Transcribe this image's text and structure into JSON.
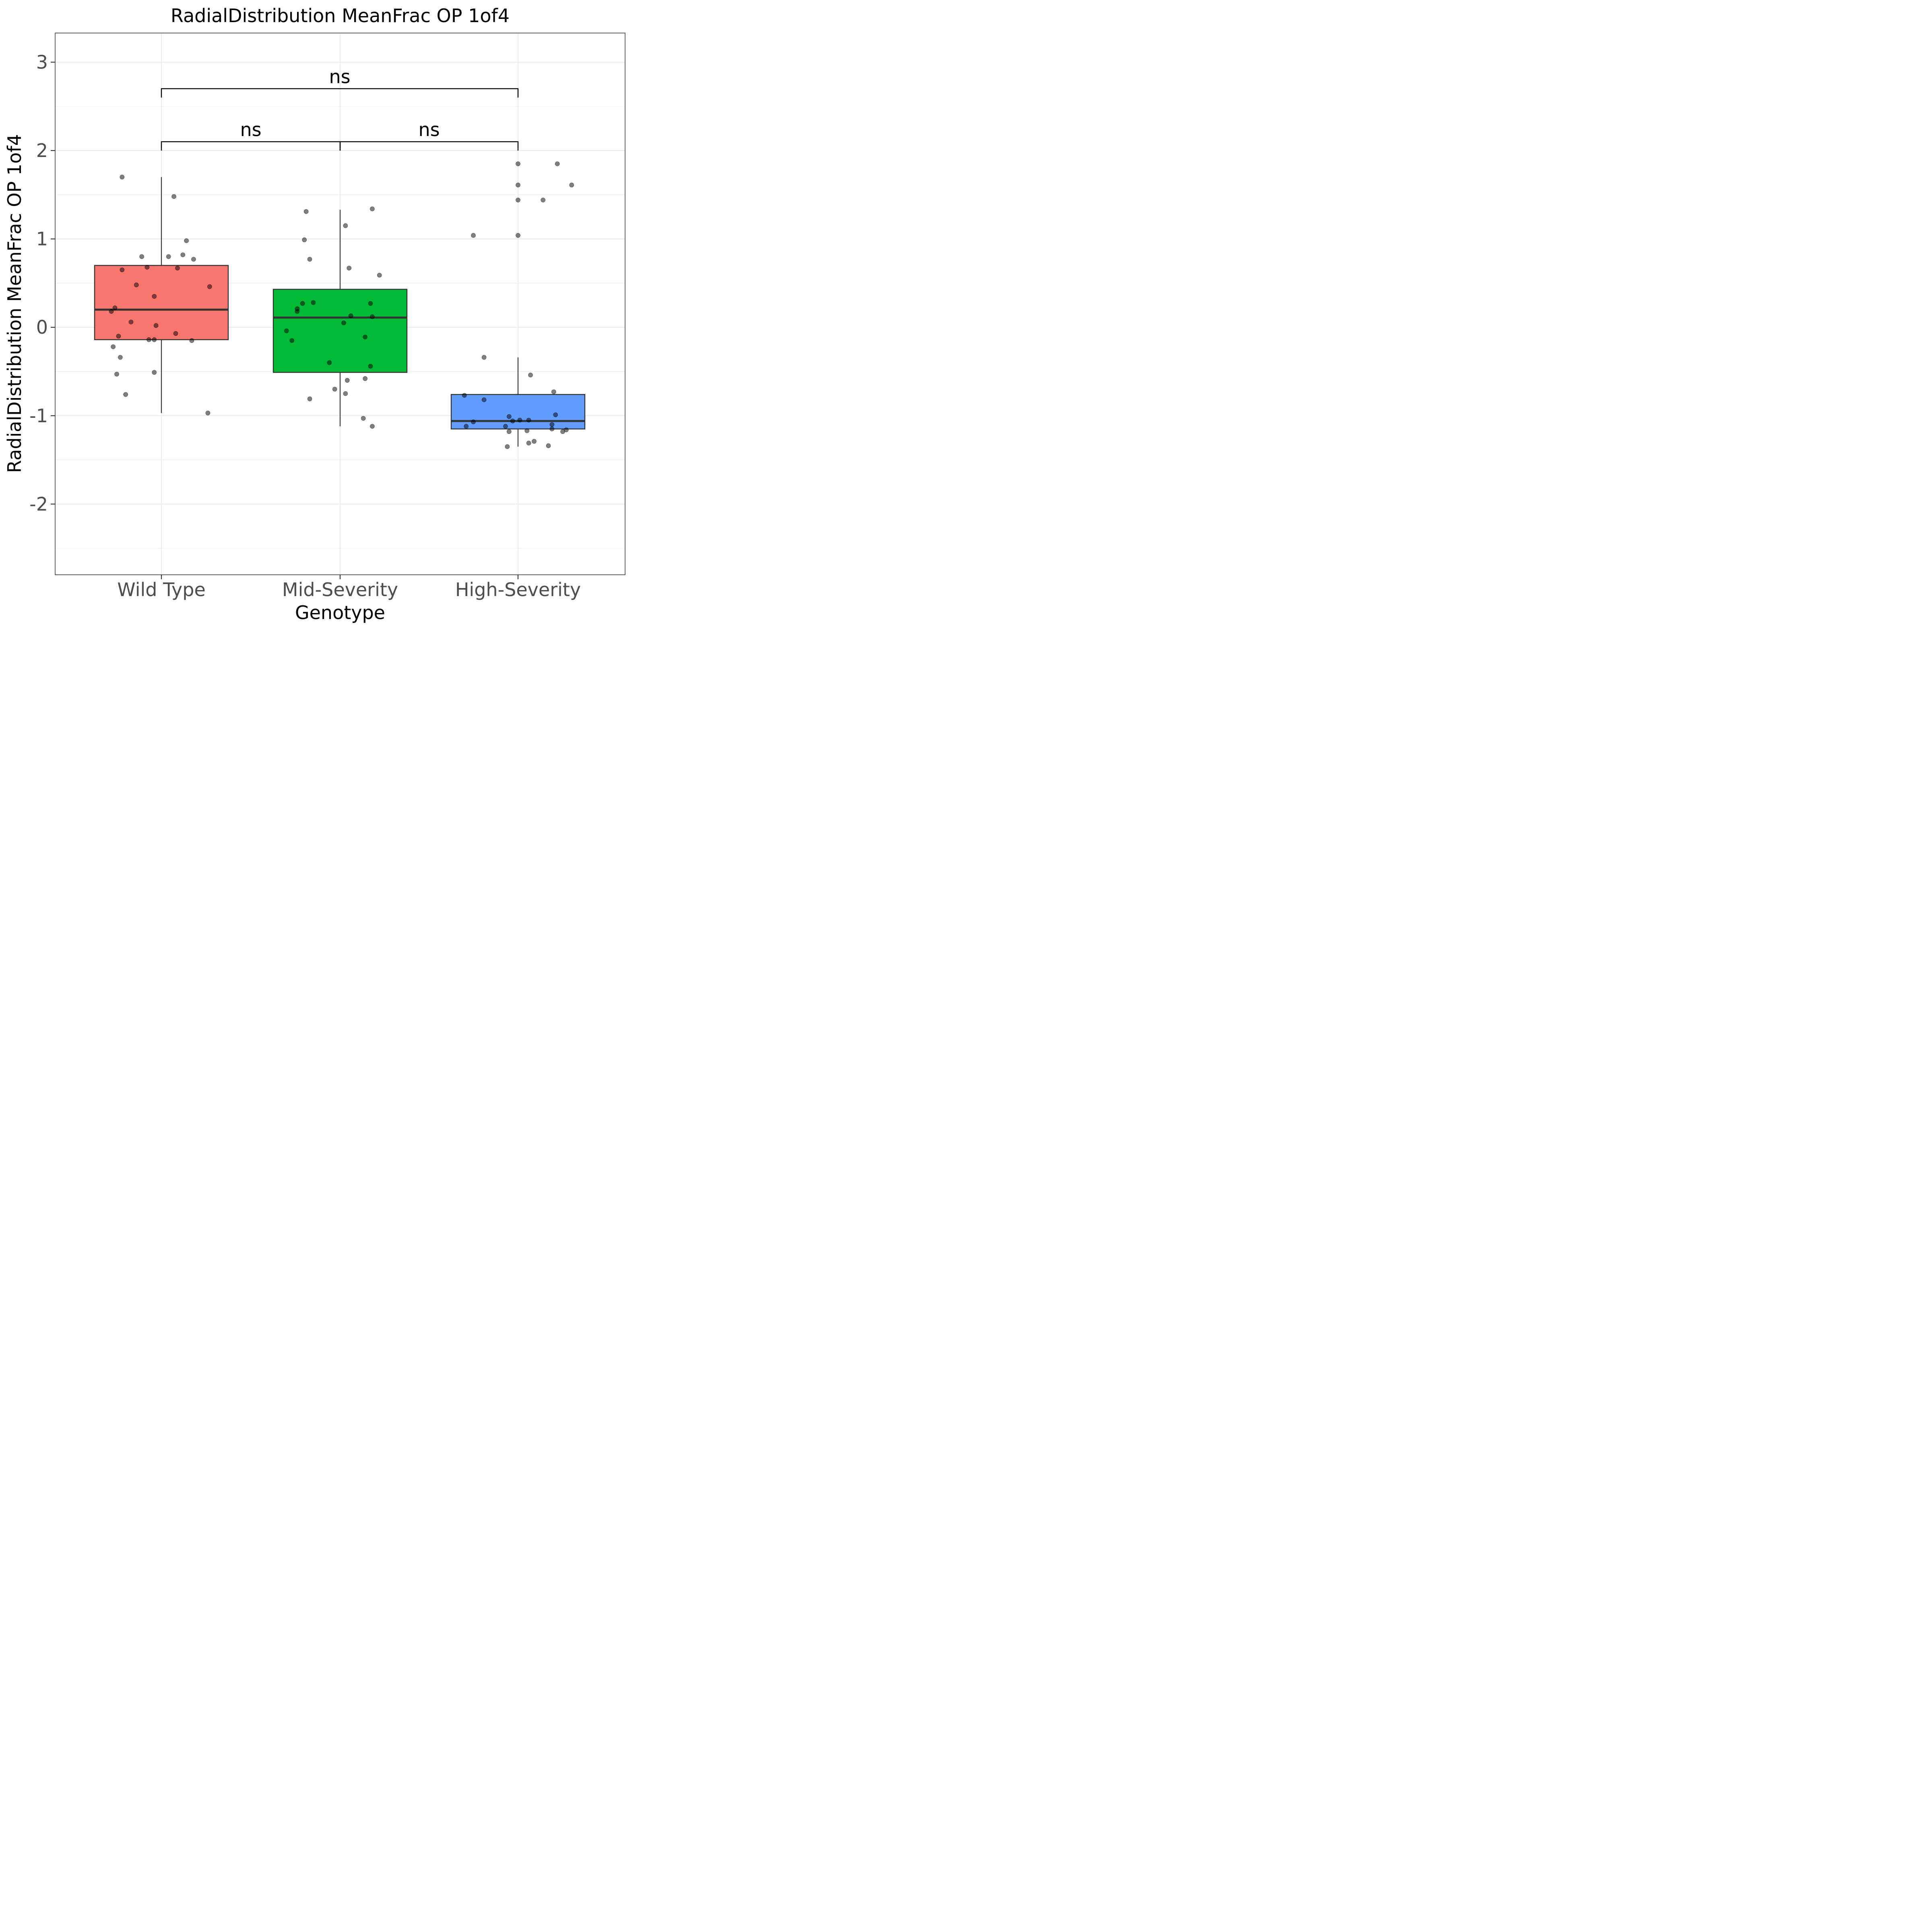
{
  "chart_data": {
    "type": "box",
    "title": "RadialDistribution MeanFrac OP 1of4",
    "xlabel": "Genotype",
    "ylabel": "RadialDistribution MeanFrac OP 1of4",
    "ylim": [
      -2.8,
      3.33
    ],
    "yticks": [
      -2,
      -1,
      0,
      1,
      2,
      3
    ],
    "ytick_labels": [
      "-2",
      "-1",
      "0",
      "1",
      "2",
      "3"
    ],
    "grid": true,
    "categories": [
      "Wild Type",
      "Mid-Severity",
      "High-Severity"
    ],
    "colors": [
      "#F8766D",
      "#00BA38",
      "#619CFF"
    ],
    "boxes": [
      {
        "name": "Wild Type",
        "q1": -0.14,
        "median": 0.2,
        "q3": 0.7,
        "whisker_low": -0.97,
        "whisker_high": 1.7
      },
      {
        "name": "Mid-Severity",
        "q1": -0.51,
        "median": 0.11,
        "q3": 0.43,
        "whisker_low": -1.12,
        "whisker_high": 1.33
      },
      {
        "name": "High-Severity",
        "q1": -1.15,
        "median": -1.06,
        "q3": -0.76,
        "whisker_low": -1.35,
        "whisker_high": -0.34
      }
    ],
    "points": [
      [
        {
          "dx": -0.22,
          "y": 1.7
        },
        {
          "dx": 0.07,
          "y": 1.48
        },
        {
          "dx": 0.14,
          "y": 0.98
        },
        {
          "dx": -0.11,
          "y": 0.8
        },
        {
          "dx": 0.04,
          "y": 0.8
        },
        {
          "dx": 0.12,
          "y": 0.82
        },
        {
          "dx": 0.18,
          "y": 0.77
        },
        {
          "dx": -0.22,
          "y": 0.65
        },
        {
          "dx": -0.08,
          "y": 0.68
        },
        {
          "dx": 0.09,
          "y": 0.67
        },
        {
          "dx": -0.14,
          "y": 0.48
        },
        {
          "dx": 0.27,
          "y": 0.46
        },
        {
          "dx": -0.04,
          "y": 0.35
        },
        {
          "dx": -0.26,
          "y": 0.22
        },
        {
          "dx": -0.28,
          "y": 0.18
        },
        {
          "dx": -0.17,
          "y": 0.06
        },
        {
          "dx": -0.03,
          "y": 0.02
        },
        {
          "dx": 0.08,
          "y": -0.07
        },
        {
          "dx": -0.24,
          "y": -0.1
        },
        {
          "dx": -0.07,
          "y": -0.14
        },
        {
          "dx": -0.04,
          "y": -0.14
        },
        {
          "dx": 0.17,
          "y": -0.15
        },
        {
          "dx": -0.27,
          "y": -0.22
        },
        {
          "dx": -0.23,
          "y": -0.34
        },
        {
          "dx": -0.04,
          "y": -0.51
        },
        {
          "dx": -0.25,
          "y": -0.53
        },
        {
          "dx": -0.2,
          "y": -0.76
        },
        {
          "dx": 0.26,
          "y": -0.97
        }
      ],
      [
        {
          "dx": 0.18,
          "y": 1.34
        },
        {
          "dx": -0.19,
          "y": 1.31
        },
        {
          "dx": 0.03,
          "y": 1.15
        },
        {
          "dx": -0.2,
          "y": 0.99
        },
        {
          "dx": -0.17,
          "y": 0.77
        },
        {
          "dx": 0.05,
          "y": 0.67
        },
        {
          "dx": 0.22,
          "y": 0.59
        },
        {
          "dx": -0.15,
          "y": 0.28
        },
        {
          "dx": -0.21,
          "y": 0.27
        },
        {
          "dx": 0.17,
          "y": 0.27
        },
        {
          "dx": -0.24,
          "y": 0.21
        },
        {
          "dx": -0.24,
          "y": 0.18
        },
        {
          "dx": 0.06,
          "y": 0.13
        },
        {
          "dx": 0.18,
          "y": 0.12
        },
        {
          "dx": 0.02,
          "y": 0.05
        },
        {
          "dx": -0.3,
          "y": -0.04
        },
        {
          "dx": -0.27,
          "y": -0.15
        },
        {
          "dx": 0.14,
          "y": -0.11
        },
        {
          "dx": -0.06,
          "y": -0.4
        },
        {
          "dx": 0.17,
          "y": -0.44
        },
        {
          "dx": 0.14,
          "y": -0.58
        },
        {
          "dx": 0.04,
          "y": -0.6
        },
        {
          "dx": -0.03,
          "y": -0.7
        },
        {
          "dx": 0.03,
          "y": -0.75
        },
        {
          "dx": -0.17,
          "y": -0.81
        },
        {
          "dx": 0.13,
          "y": -1.03
        },
        {
          "dx": 0.18,
          "y": -1.12
        }
      ],
      [
        {
          "dx": 0.0,
          "y": 1.85
        },
        {
          "dx": 0.22,
          "y": 1.85
        },
        {
          "dx": 0.0,
          "y": 1.61
        },
        {
          "dx": 0.3,
          "y": 1.61
        },
        {
          "dx": 0.0,
          "y": 1.44
        },
        {
          "dx": 0.14,
          "y": 1.44
        },
        {
          "dx": -0.25,
          "y": 1.04
        },
        {
          "dx": 0.0,
          "y": 1.04
        },
        {
          "dx": -0.19,
          "y": -0.34
        },
        {
          "dx": 0.07,
          "y": -0.54
        },
        {
          "dx": 0.2,
          "y": -0.73
        },
        {
          "dx": -0.3,
          "y": -0.77
        },
        {
          "dx": -0.19,
          "y": -0.82
        },
        {
          "dx": 0.21,
          "y": -0.99
        },
        {
          "dx": -0.05,
          "y": -1.01
        },
        {
          "dx": -0.03,
          "y": -1.06
        },
        {
          "dx": 0.01,
          "y": -1.05
        },
        {
          "dx": 0.06,
          "y": -1.05
        },
        {
          "dx": -0.25,
          "y": -1.07
        },
        {
          "dx": 0.19,
          "y": -1.1
        },
        {
          "dx": -0.29,
          "y": -1.12
        },
        {
          "dx": -0.07,
          "y": -1.12
        },
        {
          "dx": 0.19,
          "y": -1.15
        },
        {
          "dx": 0.27,
          "y": -1.16
        },
        {
          "dx": -0.05,
          "y": -1.18
        },
        {
          "dx": 0.05,
          "y": -1.17
        },
        {
          "dx": 0.25,
          "y": -1.18
        },
        {
          "dx": 0.09,
          "y": -1.29
        },
        {
          "dx": 0.06,
          "y": -1.31
        },
        {
          "dx": -0.06,
          "y": -1.35
        },
        {
          "dx": 0.17,
          "y": -1.34
        }
      ]
    ],
    "comparisons": [
      {
        "from": 0,
        "to": 1,
        "y": 2.1,
        "label": "ns"
      },
      {
        "from": 1,
        "to": 2,
        "y": 2.1,
        "label": "ns"
      },
      {
        "from": 0,
        "to": 2,
        "y": 2.7,
        "label": "ns"
      }
    ]
  }
}
